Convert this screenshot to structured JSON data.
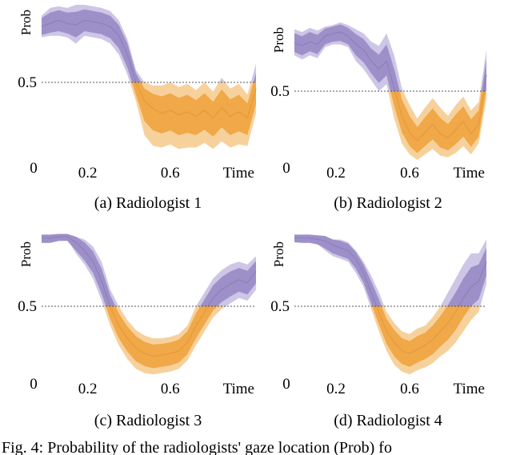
{
  "colors": {
    "purple_dark": "#9d90c8",
    "purple_light": "#cdc6e6",
    "purple_line": "#8d7fbe",
    "orange_dark": "#f0a848",
    "orange_light": "#f7d19c",
    "orange_line": "#e59a3c",
    "threshold": "#555555"
  },
  "figure_caption": "Fig. 4: Probability of the radiologists' gaze location (Prob) fo",
  "chart_data": [
    {
      "type": "area",
      "caption": "(a) Radiologist 1",
      "ylabel": "Prob",
      "xlabel": "Time",
      "xtick_labels": [
        "0",
        "0.2",
        "0.6"
      ],
      "ytick_labels": [
        "0.5"
      ],
      "threshold": 0.5,
      "xlim": [
        0,
        1
      ],
      "ylim": [
        0,
        1
      ],
      "x": [
        0,
        0.04,
        0.08,
        0.12,
        0.16,
        0.2,
        0.24,
        0.28,
        0.32,
        0.36,
        0.4,
        0.44,
        0.48,
        0.52,
        0.56,
        0.6,
        0.64,
        0.68,
        0.72,
        0.76,
        0.8,
        0.84,
        0.88,
        0.92,
        0.96,
        1.0
      ],
      "upper": [
        0.93,
        0.98,
        0.99,
        0.98,
        1.0,
        1.0,
        0.99,
        0.98,
        0.96,
        0.9,
        0.78,
        0.58,
        0.5,
        0.48,
        0.48,
        0.5,
        0.47,
        0.49,
        0.45,
        0.5,
        0.44,
        0.53,
        0.46,
        0.49,
        0.42,
        0.62
      ],
      "mean": [
        0.86,
        0.88,
        0.9,
        0.88,
        0.87,
        0.9,
        0.89,
        0.88,
        0.86,
        0.8,
        0.68,
        0.5,
        0.38,
        0.33,
        0.3,
        0.32,
        0.29,
        0.31,
        0.28,
        0.32,
        0.27,
        0.34,
        0.28,
        0.31,
        0.27,
        0.46
      ],
      "lower": [
        0.79,
        0.8,
        0.8,
        0.79,
        0.75,
        0.8,
        0.79,
        0.78,
        0.75,
        0.68,
        0.55,
        0.38,
        0.16,
        0.09,
        0.08,
        0.1,
        0.07,
        0.08,
        0.08,
        0.11,
        0.07,
        0.12,
        0.08,
        0.1,
        0.09,
        0.3
      ]
    },
    {
      "type": "area",
      "caption": "(b) Radiologist 2",
      "ylabel": "Prob",
      "xlabel": "Time",
      "xtick_labels": [
        "0",
        "0.2",
        "0.6"
      ],
      "ytick_labels": [
        "0.5"
      ],
      "threshold": 0.5,
      "xlim": [
        0,
        1
      ],
      "ylim": [
        0,
        1
      ],
      "x": [
        0,
        0.04,
        0.08,
        0.12,
        0.16,
        0.2,
        0.24,
        0.28,
        0.32,
        0.36,
        0.4,
        0.44,
        0.48,
        0.52,
        0.56,
        0.6,
        0.64,
        0.68,
        0.72,
        0.76,
        0.8,
        0.84,
        0.88,
        0.92,
        0.96,
        1.0
      ],
      "upper": [
        0.95,
        0.93,
        0.96,
        0.94,
        0.97,
        0.98,
        1.0,
        0.98,
        0.95,
        0.92,
        0.86,
        0.83,
        0.92,
        0.76,
        0.52,
        0.4,
        0.3,
        0.38,
        0.45,
        0.38,
        0.32,
        0.4,
        0.46,
        0.36,
        0.42,
        0.8
      ],
      "mean": [
        0.85,
        0.83,
        0.86,
        0.84,
        0.9,
        0.92,
        0.93,
        0.9,
        0.84,
        0.8,
        0.72,
        0.66,
        0.72,
        0.52,
        0.32,
        0.2,
        0.14,
        0.2,
        0.26,
        0.19,
        0.16,
        0.22,
        0.28,
        0.19,
        0.26,
        0.62
      ],
      "lower": [
        0.76,
        0.73,
        0.76,
        0.74,
        0.82,
        0.84,
        0.84,
        0.82,
        0.72,
        0.66,
        0.58,
        0.5,
        0.55,
        0.3,
        0.12,
        0.04,
        0.0,
        0.04,
        0.08,
        0.03,
        0.02,
        0.05,
        0.1,
        0.04,
        0.12,
        0.44
      ]
    },
    {
      "type": "area",
      "caption": "(c) Radiologist 3",
      "ylabel": "Prob",
      "xlabel": "Time",
      "xtick_labels": [
        "0",
        "0.2",
        "0.6"
      ],
      "ytick_labels": [
        "0.5"
      ],
      "threshold": 0.5,
      "xlim": [
        0,
        1
      ],
      "ylim": [
        0,
        1
      ],
      "x": [
        0,
        0.04,
        0.08,
        0.12,
        0.16,
        0.2,
        0.24,
        0.28,
        0.32,
        0.36,
        0.4,
        0.44,
        0.48,
        0.52,
        0.56,
        0.6,
        0.64,
        0.68,
        0.72,
        0.76,
        0.8,
        0.84,
        0.88,
        0.92,
        0.96,
        1.0
      ],
      "upper": [
        1.0,
        1.0,
        1.0,
        1.0,
        1.0,
        0.98,
        0.93,
        0.82,
        0.62,
        0.5,
        0.4,
        0.33,
        0.29,
        0.27,
        0.27,
        0.28,
        0.3,
        0.36,
        0.5,
        0.6,
        0.7,
        0.76,
        0.8,
        0.82,
        0.8,
        0.86
      ],
      "mean": [
        0.99,
        0.99,
        1.0,
        1.0,
        0.96,
        0.9,
        0.82,
        0.68,
        0.5,
        0.36,
        0.27,
        0.2,
        0.16,
        0.14,
        0.15,
        0.16,
        0.18,
        0.24,
        0.36,
        0.46,
        0.56,
        0.62,
        0.66,
        0.69,
        0.67,
        0.75
      ],
      "lower": [
        0.96,
        0.96,
        0.98,
        0.98,
        0.88,
        0.8,
        0.7,
        0.54,
        0.36,
        0.22,
        0.12,
        0.05,
        0.02,
        0.01,
        0.02,
        0.03,
        0.05,
        0.11,
        0.22,
        0.32,
        0.42,
        0.48,
        0.52,
        0.56,
        0.54,
        0.62
      ]
    },
    {
      "type": "area",
      "caption": "(d) Radiologist 4",
      "ylabel": "Prob",
      "xlabel": "Time",
      "xtick_labels": [
        "0",
        "0.2",
        "0.6"
      ],
      "ytick_labels": [
        "0.5"
      ],
      "threshold": 0.5,
      "xlim": [
        0,
        1
      ],
      "ylim": [
        0,
        1
      ],
      "x": [
        0,
        0.04,
        0.08,
        0.12,
        0.16,
        0.2,
        0.24,
        0.28,
        0.32,
        0.36,
        0.4,
        0.44,
        0.48,
        0.52,
        0.56,
        0.6,
        0.64,
        0.68,
        0.72,
        0.76,
        0.8,
        0.84,
        0.88,
        0.92,
        0.96,
        1.0
      ],
      "upper": [
        1.0,
        1.0,
        1.0,
        1.0,
        1.0,
        0.98,
        0.98,
        0.96,
        0.9,
        0.82,
        0.72,
        0.6,
        0.46,
        0.38,
        0.32,
        0.3,
        0.34,
        0.36,
        0.42,
        0.5,
        0.6,
        0.7,
        0.8,
        0.88,
        0.88,
        0.98
      ],
      "mean": [
        0.99,
        0.99,
        0.99,
        0.98,
        0.97,
        0.94,
        0.92,
        0.9,
        0.84,
        0.74,
        0.6,
        0.46,
        0.32,
        0.24,
        0.18,
        0.16,
        0.19,
        0.22,
        0.26,
        0.32,
        0.38,
        0.46,
        0.56,
        0.64,
        0.68,
        0.82
      ],
      "lower": [
        0.97,
        0.96,
        0.96,
        0.95,
        0.9,
        0.86,
        0.84,
        0.82,
        0.74,
        0.64,
        0.48,
        0.32,
        0.18,
        0.08,
        0.03,
        0.01,
        0.04,
        0.06,
        0.09,
        0.14,
        0.18,
        0.24,
        0.32,
        0.4,
        0.46,
        0.66
      ]
    }
  ]
}
